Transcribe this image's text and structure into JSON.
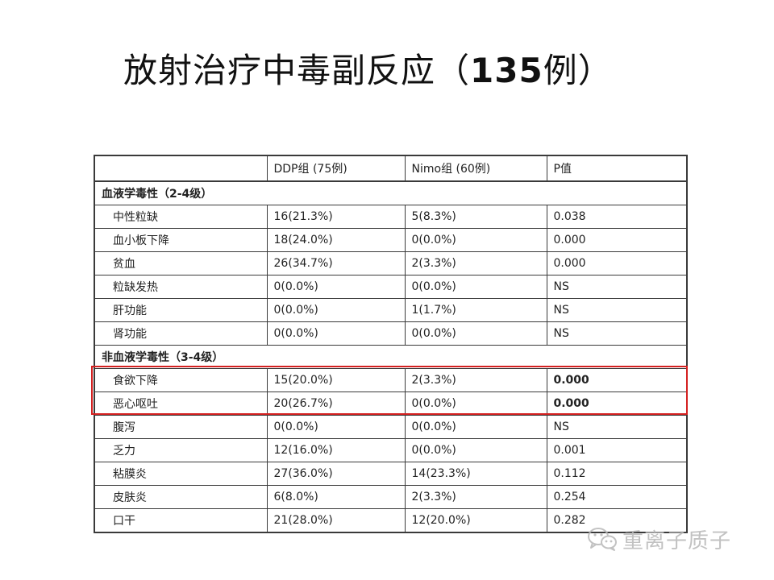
{
  "title": {
    "text": "放射治疗中毒副反应（",
    "bold": "135",
    "suffix": "例）"
  },
  "table": {
    "headers": [
      "",
      "DDP组 (75例)",
      "Nimo组 (60例)",
      "P值"
    ],
    "section_hematologic": "血液学毒性（2-4级）",
    "hematologic_rows": [
      [
        "中性粒缺",
        "16(21.3%)",
        "5(8.3%)",
        "0.038"
      ],
      [
        "血小板下降",
        "18(24.0%)",
        "0(0.0%)",
        "0.000"
      ],
      [
        "贫血",
        "26(34.7%)",
        "2(3.3%)",
        "0.000"
      ],
      [
        "粒缺发热",
        "0(0.0%)",
        "0(0.0%)",
        "NS"
      ],
      [
        "肝功能",
        "0(0.0%)",
        "1(1.7%)",
        "NS"
      ],
      [
        "肾功能",
        "0(0.0%)",
        "0(0.0%)",
        "NS"
      ]
    ],
    "section_nonhematologic": "非血液学毒性（3-4级）",
    "nonhematologic_rows": [
      [
        "食欲下降",
        "15(20.0%)",
        "2(3.3%)",
        "0.000"
      ],
      [
        "恶心呕吐",
        "20(26.7%)",
        "0(0.0%)",
        "0.000"
      ],
      [
        "腹泻",
        "0(0.0%)",
        "0(0.0%)",
        "NS"
      ],
      [
        "乏力",
        "12(16.0%)",
        "0(0.0%)",
        "0.001"
      ],
      [
        "粘膜炎",
        "27(36.0%)",
        "14(23.3%)",
        "0.112"
      ],
      [
        "皮肤炎",
        "6(8.0%)",
        "2(3.3%)",
        "0.254"
      ],
      [
        "口干",
        "21(28.0%)",
        "12(20.0%)",
        "0.282"
      ]
    ]
  },
  "watermark": {
    "text": "重离子质子",
    "icon": "wechat-logo-icon"
  },
  "colors": {
    "highlight": "#d42020",
    "border": "#3a3a3a",
    "watermark": "#b8b8b8"
  }
}
